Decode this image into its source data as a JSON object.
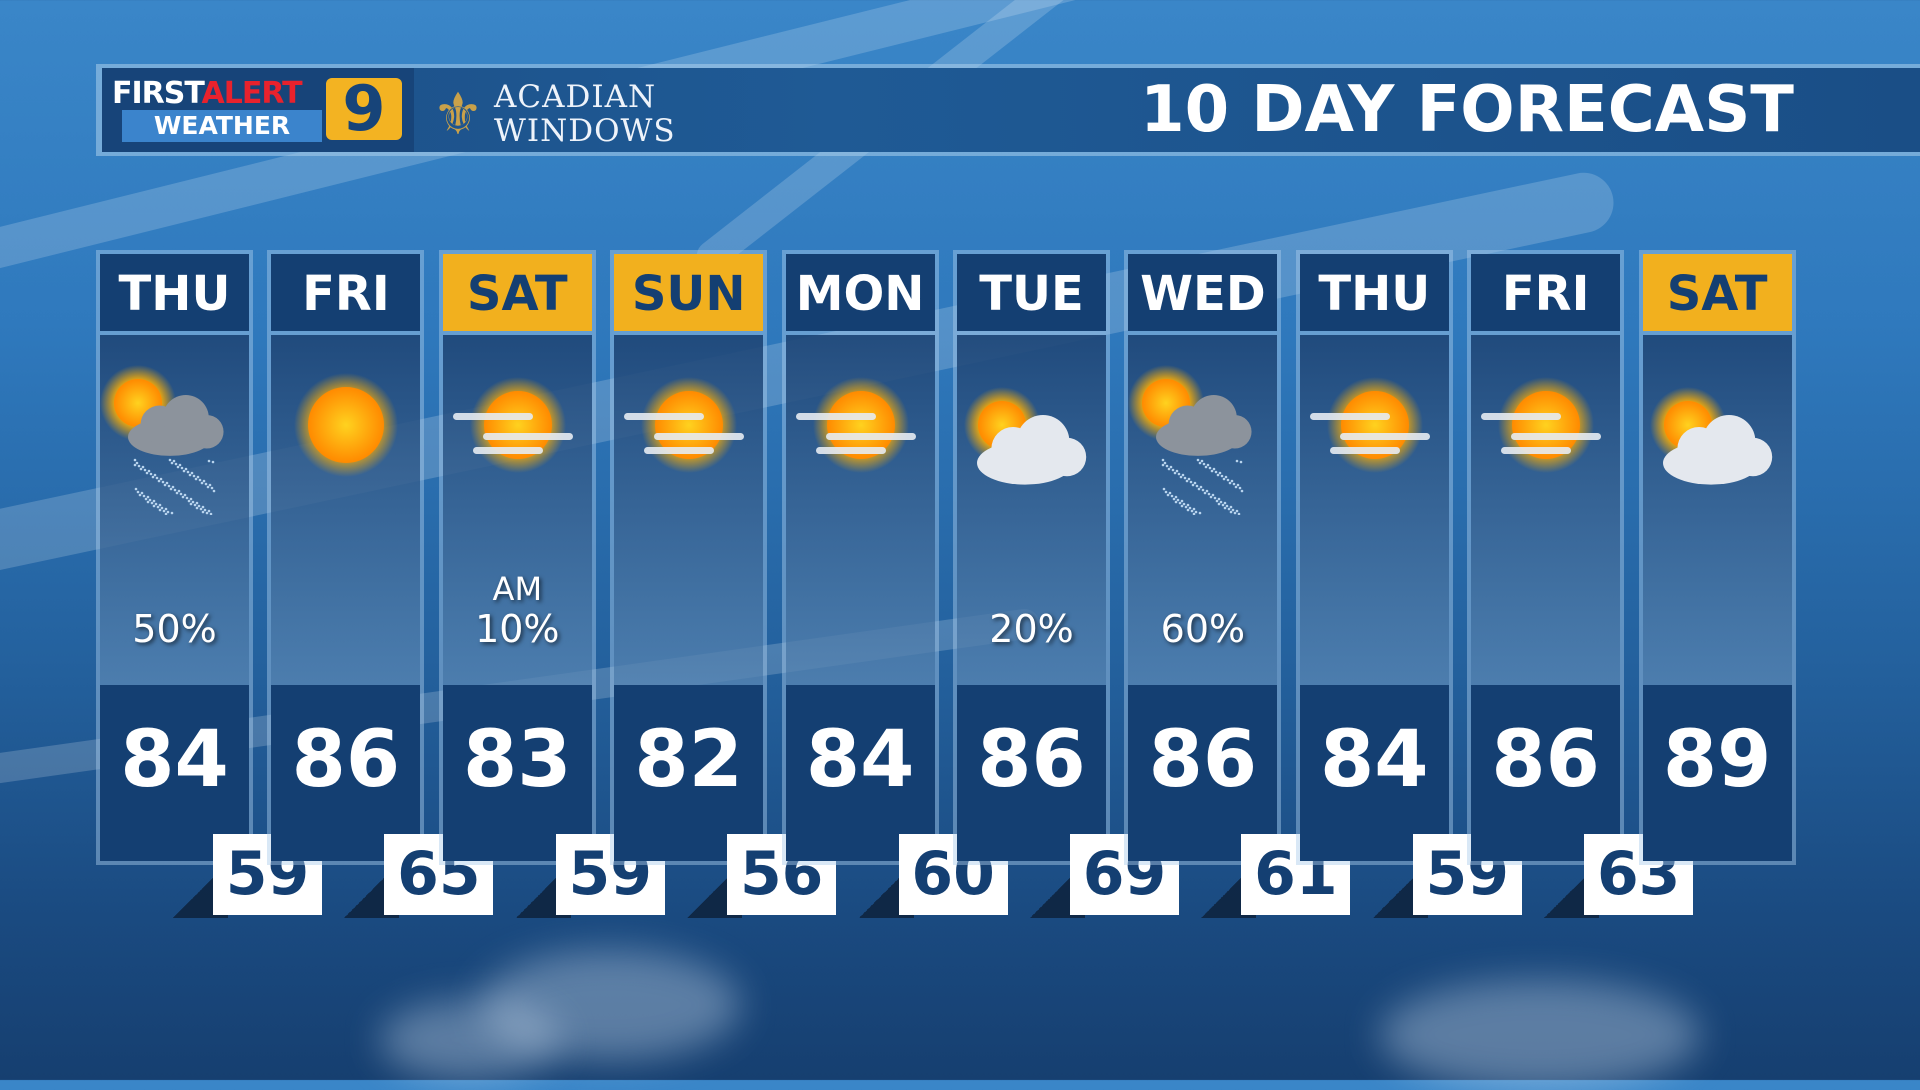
{
  "header": {
    "logo": {
      "first": "FIRST",
      "alert": "ALERT",
      "weather": "WEATHER",
      "channel": "9"
    },
    "sponsor": {
      "line1": "ACADIAN",
      "line2": "WINDOWS"
    },
    "title": "10 DAY FORECAST"
  },
  "colors": {
    "weekday_header": "#143f72",
    "weekend_header": "#f2b01e",
    "alert_red": "#e8222d"
  },
  "days": [
    {
      "day": "THU",
      "weekend": false,
      "icon": "partly-sunny-showers-icon",
      "precip_note": "",
      "precip": "50%",
      "high": "84",
      "low": "59"
    },
    {
      "day": "FRI",
      "weekend": false,
      "icon": "sunny-icon",
      "precip_note": "",
      "precip": "",
      "high": "86",
      "low": "65"
    },
    {
      "day": "SAT",
      "weekend": true,
      "icon": "hazy-sun-icon",
      "precip_note": "AM",
      "precip": "10%",
      "high": "83",
      "low": "59"
    },
    {
      "day": "SUN",
      "weekend": true,
      "icon": "hazy-sun-icon",
      "precip_note": "",
      "precip": "",
      "high": "82",
      "low": "56"
    },
    {
      "day": "MON",
      "weekend": false,
      "icon": "hazy-sun-icon",
      "precip_note": "",
      "precip": "",
      "high": "84",
      "low": "60"
    },
    {
      "day": "TUE",
      "weekend": false,
      "icon": "partly-cloudy-icon",
      "precip_note": "",
      "precip": "20%",
      "high": "86",
      "low": "69"
    },
    {
      "day": "WED",
      "weekend": false,
      "icon": "partly-sunny-showers-icon",
      "precip_note": "",
      "precip": "60%",
      "high": "86",
      "low": "61"
    },
    {
      "day": "THU",
      "weekend": false,
      "icon": "hazy-sun-icon",
      "precip_note": "",
      "precip": "",
      "high": "84",
      "low": "59"
    },
    {
      "day": "FRI",
      "weekend": false,
      "icon": "hazy-sun-icon",
      "precip_note": "",
      "precip": "",
      "high": "86",
      "low": "63"
    },
    {
      "day": "SAT",
      "weekend": true,
      "icon": "partly-cloudy-icon",
      "precip_note": "",
      "precip": "",
      "high": "89",
      "low": ""
    }
  ]
}
